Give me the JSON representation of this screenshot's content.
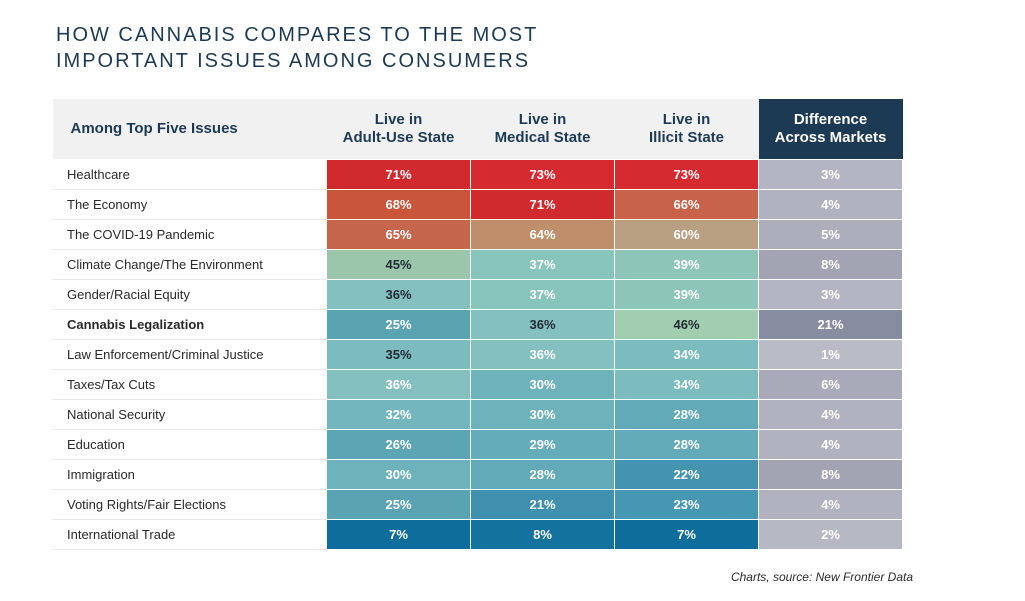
{
  "title": {
    "line1": "HOW CANNABIS COMPARES TO THE MOST",
    "line2": "IMPORTANT ISSUES AMONG CONSUMERS"
  },
  "source": "Charts, source: New Frontier Data",
  "chart_data": {
    "type": "table",
    "title": "HOW CANNABIS COMPARES TO THE MOST IMPORTANT ISSUES AMONG CONSUMERS",
    "row_header": "Among Top Five Issues",
    "columns": [
      [
        "Live in",
        "Adult-Use State"
      ],
      [
        "Live in",
        "Medical State"
      ],
      [
        "Live in",
        "Illicit State"
      ],
      [
        "Difference",
        "Across Markets"
      ]
    ],
    "rows": [
      {
        "issue": "Healthcare",
        "values": [
          "71%",
          "73%",
          "73%",
          "3%"
        ],
        "colors": [
          "#d02a2f",
          "#d42a30",
          "#d42a30",
          "#b3b5c2"
        ]
      },
      {
        "issue": "The Economy",
        "values": [
          "68%",
          "71%",
          "66%",
          "4%"
        ],
        "colors": [
          "#c9553a",
          "#d02a2f",
          "#c8624a",
          "#b0b2bf"
        ]
      },
      {
        "issue": "The COVID-19 Pandemic",
        "values": [
          "65%",
          "64%",
          "60%",
          "5%"
        ],
        "colors": [
          "#c5664c",
          "#bf8f6c",
          "#b9a082",
          "#acaebc"
        ]
      },
      {
        "issue": "Climate Change/The Environment",
        "values": [
          "45%",
          "37%",
          "39%",
          "8%"
        ],
        "colors": [
          "#9cc6ac",
          "#87c4bb",
          "#8dc6b8",
          "#a2a4b4"
        ]
      },
      {
        "issue": "Gender/Racial Equity",
        "values": [
          "36%",
          "37%",
          "39%",
          "3%"
        ],
        "colors": [
          "#84c0bf",
          "#87c4bb",
          "#8dc6b8",
          "#b3b5c2"
        ]
      },
      {
        "issue": "Cannabis Legalization",
        "values": [
          "25%",
          "36%",
          "46%",
          "21%"
        ],
        "colors": [
          "#5aa3b1",
          "#84c0bf",
          "#a3cdaf",
          "#888ca0"
        ],
        "bold": true
      },
      {
        "issue": "Law Enforcement/Criminal Justice",
        "values": [
          "35%",
          "36%",
          "34%",
          "1%"
        ],
        "colors": [
          "#7cbcbf",
          "#84c0bf",
          "#7cbcbf",
          "#b9bbc7"
        ]
      },
      {
        "issue": "Taxes/Tax Cuts",
        "values": [
          "36%",
          "30%",
          "34%",
          "6%"
        ],
        "colors": [
          "#84c0bf",
          "#6eb3bc",
          "#7cbcbf",
          "#a8aab9"
        ]
      },
      {
        "issue": "National Security",
        "values": [
          "32%",
          "30%",
          "28%",
          "4%"
        ],
        "colors": [
          "#73b6bd",
          "#6eb3bc",
          "#62aab8",
          "#b0b2bf"
        ]
      },
      {
        "issue": "Education",
        "values": [
          "26%",
          "29%",
          "28%",
          "4%"
        ],
        "colors": [
          "#5ba5b5",
          "#64acb9",
          "#62aab8",
          "#b0b2bf"
        ]
      },
      {
        "issue": "Immigration",
        "values": [
          "30%",
          "28%",
          "22%",
          "8%"
        ],
        "colors": [
          "#6eb3bc",
          "#62aab8",
          "#4494b0",
          "#a2a4b4"
        ]
      },
      {
        "issue": "Voting Rights/Fair Elections",
        "values": [
          "25%",
          "21%",
          "23%",
          "4%"
        ],
        "colors": [
          "#5aa3b3",
          "#3f90ae",
          "#4697b1",
          "#b0b2bf"
        ]
      },
      {
        "issue": "International Trade",
        "values": [
          "7%",
          "8%",
          "7%",
          "2%"
        ],
        "colors": [
          "#0f6d9b",
          "#14729f",
          "#0f6d9b",
          "#b6b8c4"
        ]
      }
    ],
    "dark_text_cells": [
      [
        3,
        0
      ],
      [
        4,
        0
      ],
      [
        5,
        1
      ],
      [
        5,
        2
      ],
      [
        6,
        0
      ]
    ]
  }
}
